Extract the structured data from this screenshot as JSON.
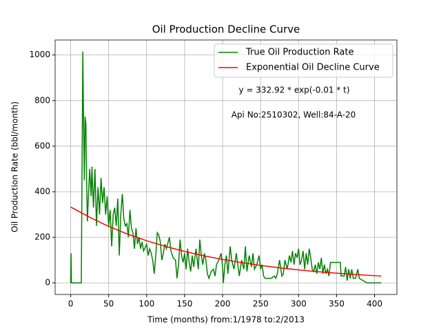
{
  "chart_data": {
    "type": "line",
    "title": "Oil Production Decline Curve",
    "xlabel": "Time (months) from:1/1978 to:2/2013",
    "ylabel": "Oil Production Rate (bbl/month)",
    "annotations": [
      "y = 332.92 * exp(-0.01 * t)",
      "Api No:2510302, Well:84-A-20"
    ],
    "xlim": [
      -20.45,
      429.45
    ],
    "ylim": [
      -50.75,
      1065.75
    ],
    "xticks": [
      0,
      50,
      100,
      150,
      200,
      250,
      300,
      350,
      400
    ],
    "yticks": [
      0,
      200,
      400,
      600,
      800,
      1000
    ],
    "grid": true,
    "legend": "upper right",
    "series": [
      {
        "name": "True Oil Production Rate",
        "color": "#008000",
        "x": [
          0,
          0.5,
          1,
          14,
          16,
          17,
          18,
          19,
          20,
          21,
          22,
          23,
          25,
          27,
          28,
          30,
          32,
          34,
          36,
          38,
          40,
          42,
          44,
          46,
          48,
          50,
          52,
          54,
          56,
          58,
          60,
          62,
          64,
          66,
          68,
          70,
          72,
          74,
          76,
          78,
          80,
          82,
          84,
          86,
          88,
          90,
          92,
          94,
          96,
          100,
          102,
          104,
          106,
          108,
          110,
          112,
          114,
          116,
          118,
          120,
          122,
          124,
          126,
          130,
          132,
          135,
          138,
          140,
          142,
          144,
          146,
          148,
          150,
          152,
          154,
          156,
          158,
          160,
          162,
          165,
          168,
          170,
          172,
          174,
          176,
          178,
          180,
          182,
          185,
          188,
          190,
          192,
          195,
          198,
          200,
          201,
          203,
          205,
          207,
          210,
          212,
          215,
          218,
          220,
          222,
          225,
          228,
          230,
          232,
          235,
          238,
          240,
          242,
          245,
          248,
          250,
          252,
          254,
          256,
          260,
          264,
          268,
          270,
          272,
          275,
          278,
          280,
          282,
          285,
          288,
          290,
          292,
          294,
          296,
          298,
          300,
          302,
          304,
          306,
          308,
          310,
          312,
          314,
          316,
          318,
          320,
          322,
          324,
          326,
          328,
          330,
          332,
          334,
          336,
          338,
          340,
          342,
          350,
          355,
          356,
          360,
          362,
          364,
          366,
          368,
          370,
          372,
          375,
          378,
          380,
          390,
          409
        ],
        "values": [
          0,
          130,
          0,
          0,
          1015,
          700,
          450,
          730,
          700,
          450,
          270,
          350,
          500,
          380,
          510,
          330,
          500,
          250,
          420,
          300,
          460,
          350,
          420,
          300,
          380,
          250,
          320,
          160,
          300,
          330,
          250,
          370,
          120,
          300,
          390,
          280,
          250,
          260,
          200,
          320,
          240,
          220,
          150,
          240,
          170,
          200,
          150,
          180,
          140,
          170,
          120,
          150,
          130,
          100,
          40,
          120,
          220,
          210,
          180,
          100,
          130,
          170,
          150,
          200,
          140,
          110,
          100,
          20,
          80,
          190,
          120,
          90,
          130,
          60,
          150,
          90,
          50,
          120,
          70,
          150,
          60,
          190,
          120,
          80,
          130,
          100,
          40,
          20,
          50,
          60,
          30,
          80,
          100,
          130,
          70,
          0,
          80,
          120,
          40,
          160,
          100,
          60,
          130,
          80,
          30,
          100,
          60,
          160,
          50,
          120,
          70,
          130,
          60,
          80,
          120,
          60,
          80,
          30,
          20,
          20,
          20,
          30,
          20,
          40,
          100,
          30,
          40,
          100,
          60,
          120,
          90,
          140,
          80,
          130,
          110,
          150,
          80,
          100,
          140,
          60,
          130,
          80,
          150,
          110,
          60,
          50,
          80,
          40,
          90,
          60,
          110,
          40,
          80,
          40,
          60,
          30,
          90,
          90,
          90,
          30,
          30,
          70,
          10,
          60,
          20,
          60,
          20,
          20,
          60,
          20,
          0,
          0
        ]
      },
      {
        "name": "Exponential Oil Decline Curve",
        "color": "#ff0000",
        "x": [
          0,
          25,
          50,
          75,
          100,
          125,
          150,
          175,
          200,
          225,
          250,
          275,
          300,
          325,
          350,
          375,
          409
        ],
        "values": [
          333,
          288,
          248,
          214,
          185,
          160,
          138,
          119,
          103,
          89,
          76.5,
          66,
          57,
          49,
          42.5,
          36.7,
          30
        ]
      }
    ]
  }
}
